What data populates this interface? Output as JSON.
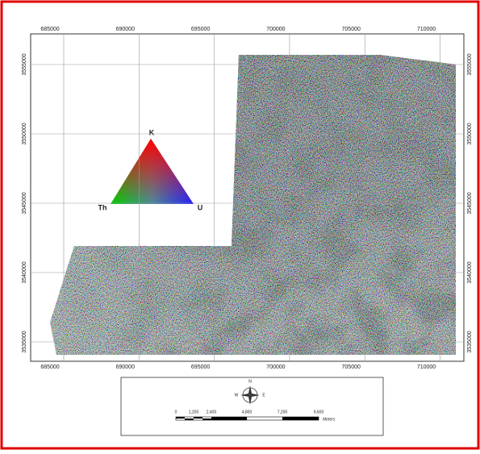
{
  "map": {
    "x_ticks": [
      685000,
      690000,
      695000,
      700000,
      705000,
      710000
    ],
    "y_ticks": [
      3555000,
      3550000,
      3545000,
      3540000,
      3535000
    ],
    "ternary": {
      "top": "K",
      "left": "Th",
      "right": "U"
    },
    "compass": {
      "north": "N",
      "west": "W",
      "east": "E"
    },
    "scale_bar": {
      "labels": [
        "0",
        "1,200",
        "2,400",
        "4,800",
        "7,200",
        "9,600"
      ],
      "unit": "Meters"
    }
  }
}
